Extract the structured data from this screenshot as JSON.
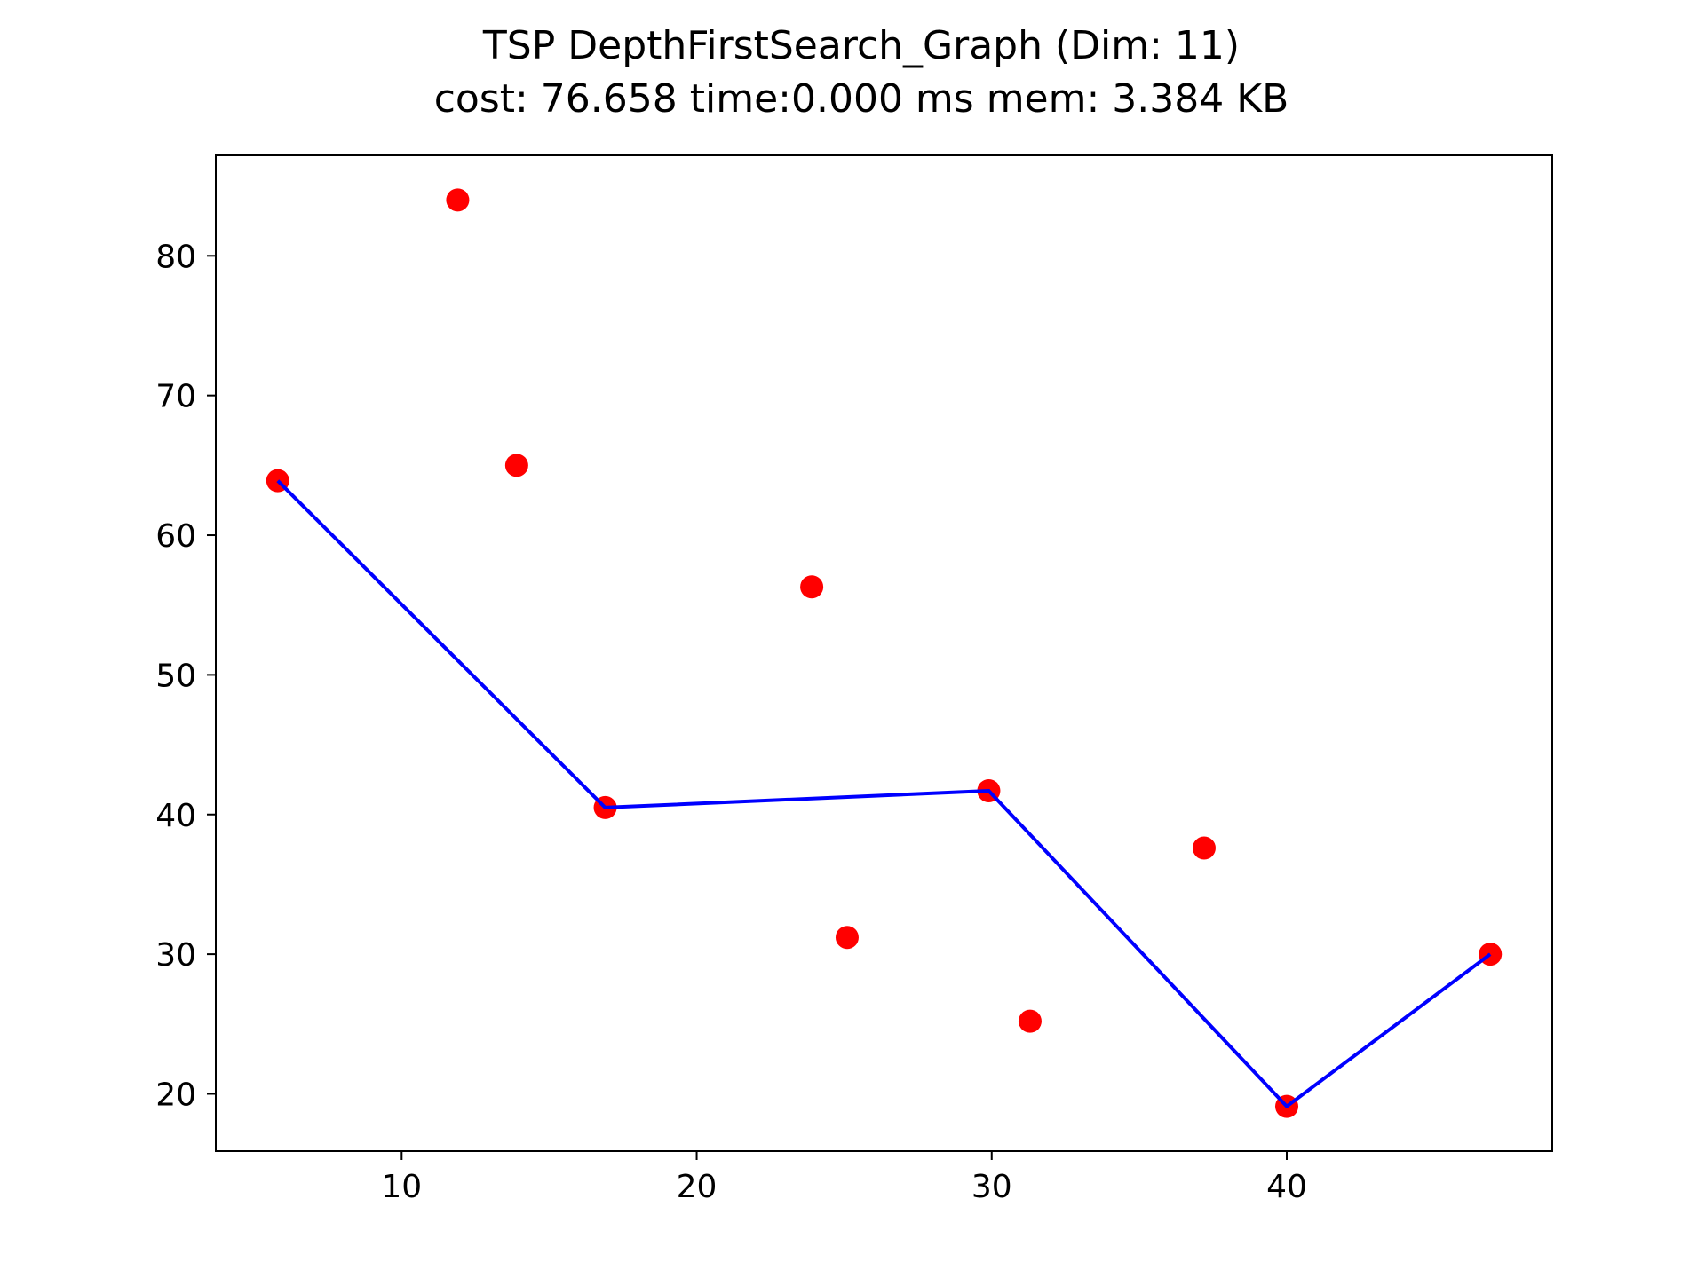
{
  "chart_data": {
    "type": "scatter",
    "title": "TSP DepthFirstSearch_Graph (Dim: 11)",
    "subtitle": "cost: 76.658   time:0.000 ms   mem: 3.384 KB",
    "xlabel": "",
    "ylabel": "",
    "xlim": [
      3.7,
      49.0
    ],
    "ylim": [
      15.9,
      87.2
    ],
    "x_ticks": [
      10,
      20,
      30,
      40
    ],
    "y_ticks": [
      20,
      30,
      40,
      50,
      60,
      70,
      80
    ],
    "grid": false,
    "legend": "none",
    "series": [
      {
        "kind": "scatter",
        "color": "#ff0000",
        "points": [
          {
            "x": 5.8,
            "y": 63.9
          },
          {
            "x": 11.9,
            "y": 84.0
          },
          {
            "x": 13.9,
            "y": 65.0
          },
          {
            "x": 16.9,
            "y": 40.5
          },
          {
            "x": 23.9,
            "y": 56.3
          },
          {
            "x": 25.1,
            "y": 31.2
          },
          {
            "x": 29.9,
            "y": 41.7
          },
          {
            "x": 31.3,
            "y": 25.2
          },
          {
            "x": 37.2,
            "y": 37.6
          },
          {
            "x": 40.0,
            "y": 19.1
          },
          {
            "x": 46.9,
            "y": 30.0
          }
        ]
      },
      {
        "kind": "line",
        "color": "#0000ff",
        "points": [
          {
            "x": 5.8,
            "y": 63.9
          },
          {
            "x": 16.9,
            "y": 40.5
          },
          {
            "x": 29.9,
            "y": 41.7
          },
          {
            "x": 40.0,
            "y": 19.1
          },
          {
            "x": 46.9,
            "y": 30.0
          }
        ]
      }
    ]
  }
}
